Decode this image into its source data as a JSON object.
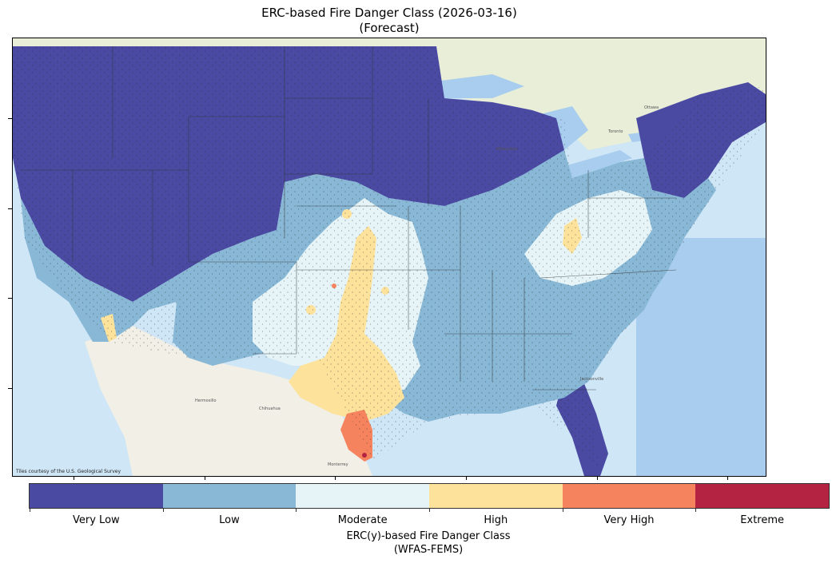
{
  "title": {
    "line1": "ERC-based Fire Danger Class (2026-03-16)",
    "line2": "(Forecast)"
  },
  "map": {
    "attribution": "Tiles courtesy of the U.S. Geological Survey"
  },
  "colorbar": {
    "title_line1": "ERC(y)-based Fire Danger Class",
    "title_line2": "(WFAS-FEMS)",
    "classes": [
      {
        "label": "Very Low",
        "color": "#4a4aa3"
      },
      {
        "label": "Low",
        "color": "#88b8d6"
      },
      {
        "label": "Moderate",
        "color": "#e6f4f7"
      },
      {
        "label": "High",
        "color": "#fde29c"
      },
      {
        "label": "Very High",
        "color": "#f4835e"
      },
      {
        "label": "Extreme",
        "color": "#b42342"
      }
    ]
  }
}
